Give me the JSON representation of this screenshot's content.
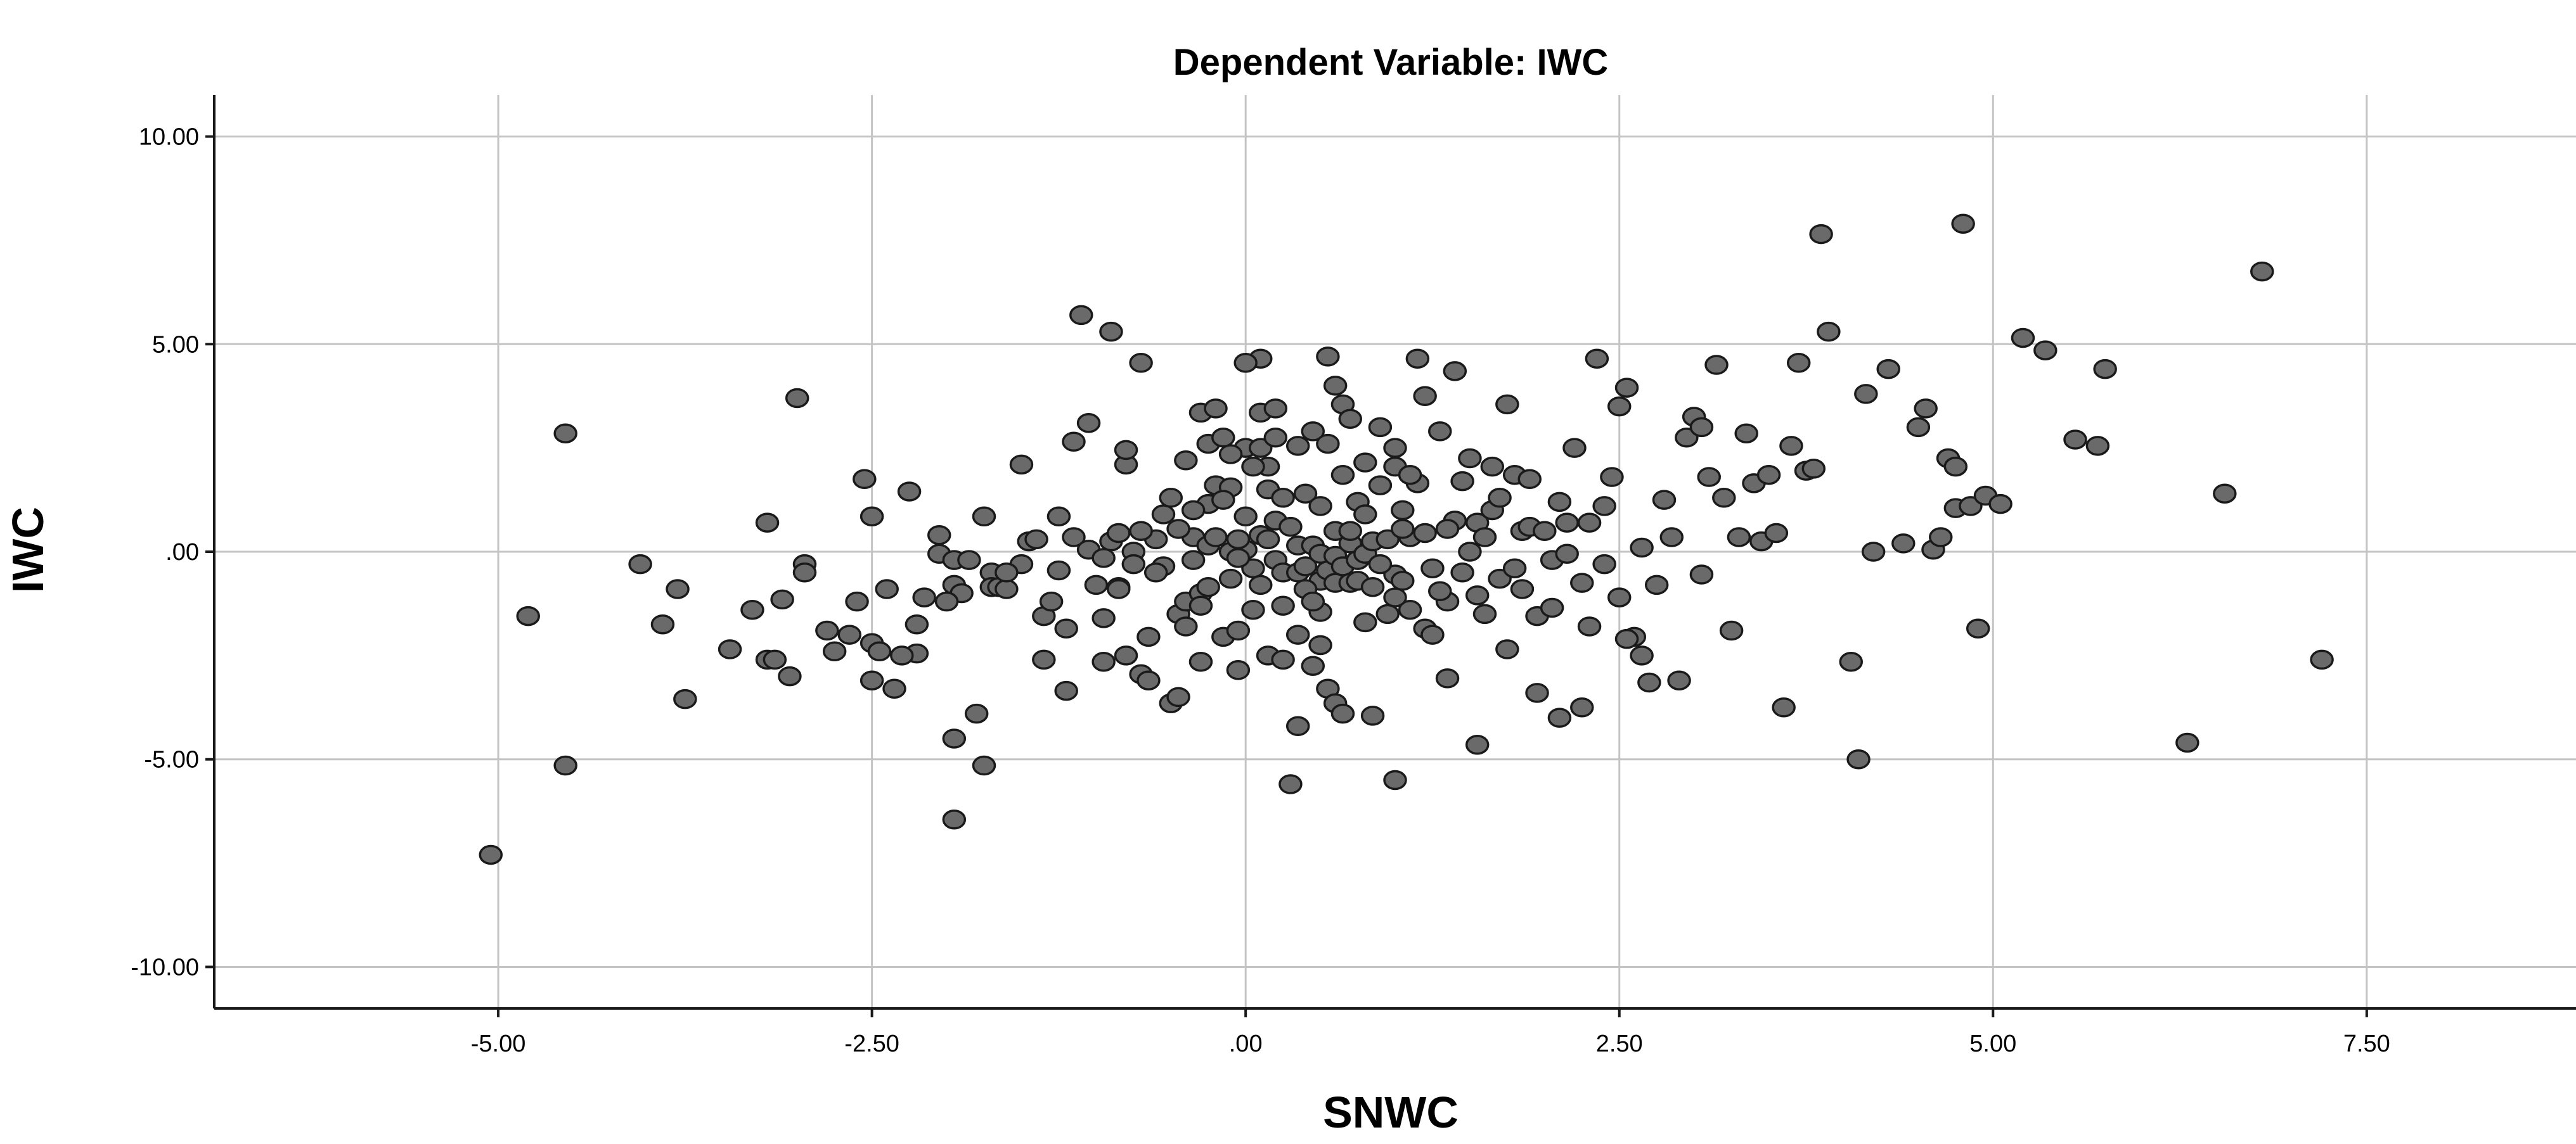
{
  "chart_data": {
    "type": "scatter",
    "title": "Dependent Variable: IWC",
    "xlabel": "SNWC",
    "ylabel": "IWC",
    "xlim": [
      -6.9,
      8.9
    ],
    "ylim": [
      -11.0,
      11.0
    ],
    "x_ticks": [
      -5,
      -2.5,
      0,
      2.5,
      5,
      7.5
    ],
    "x_tick_labels": [
      "-5.00",
      "-2.50",
      ".00",
      "2.50",
      "5.00",
      "7.50"
    ],
    "y_ticks": [
      10,
      5,
      0,
      -5,
      -10
    ],
    "y_tick_labels": [
      "10.00",
      "5.00",
      ".00",
      "-5.00",
      "-10.00"
    ],
    "grid": true,
    "legend": "none",
    "point_fill": "#6a6a6a",
    "point_stroke": "#1a1a1a",
    "points": [
      [
        -5.05,
        -7.3
      ],
      [
        -4.8,
        -1.55
      ],
      [
        -4.55,
        2.85
      ],
      [
        -4.55,
        -5.15
      ],
      [
        -4.05,
        -0.3
      ],
      [
        -3.9,
        -1.75
      ],
      [
        -3.8,
        -0.9
      ],
      [
        -3.75,
        -3.55
      ],
      [
        -3.45,
        -2.35
      ],
      [
        -3.3,
        -1.4
      ],
      [
        -3.2,
        0.7
      ],
      [
        -3.2,
        -2.6
      ],
      [
        -3.15,
        -2.6
      ],
      [
        -3.1,
        -1.15
      ],
      [
        -3.05,
        -3.0
      ],
      [
        -3.0,
        3.7
      ],
      [
        -2.95,
        -0.3
      ],
      [
        -2.95,
        -0.5
      ],
      [
        -2.75,
        -2.4
      ],
      [
        -2.65,
        -2.0
      ],
      [
        -2.6,
        -1.2
      ],
      [
        -2.55,
        1.75
      ],
      [
        -2.5,
        0.85
      ],
      [
        -2.5,
        -2.2
      ],
      [
        -2.5,
        -3.1
      ],
      [
        -2.45,
        -2.4
      ],
      [
        -2.35,
        -3.3
      ],
      [
        -2.25,
        1.45
      ],
      [
        -2.2,
        -1.75
      ],
      [
        -2.2,
        -2.45
      ],
      [
        -2.15,
        -1.1
      ],
      [
        -2.05,
        0.4
      ],
      [
        -2.05,
        -0.05
      ],
      [
        -1.95,
        -0.2
      ],
      [
        -1.95,
        -0.8
      ],
      [
        -1.95,
        -4.5
      ],
      [
        -1.95,
        -6.45
      ],
      [
        -1.9,
        -1.0
      ],
      [
        -1.8,
        -3.9
      ],
      [
        -1.75,
        0.85
      ],
      [
        -1.75,
        -5.15
      ],
      [
        -1.7,
        -0.5
      ],
      [
        -1.7,
        -0.85
      ],
      [
        -1.65,
        -0.85
      ],
      [
        -1.6,
        -0.9
      ],
      [
        -1.5,
        2.1
      ],
      [
        -1.45,
        0.25
      ],
      [
        -1.35,
        -1.55
      ],
      [
        -1.35,
        -2.6
      ],
      [
        -1.3,
        -1.2
      ],
      [
        -1.25,
        0.85
      ],
      [
        -1.2,
        -3.35
      ],
      [
        -1.15,
        2.65
      ],
      [
        -1.1,
        5.7
      ],
      [
        -1.05,
        3.1
      ],
      [
        -1.0,
        -0.8
      ],
      [
        -0.95,
        -2.65
      ],
      [
        -0.9,
        5.3
      ],
      [
        -0.9,
        0.25
      ],
      [
        -0.85,
        -0.85
      ],
      [
        -0.85,
        -0.9
      ],
      [
        -0.8,
        2.1
      ],
      [
        -0.8,
        2.45
      ],
      [
        -0.8,
        -2.5
      ],
      [
        -0.75,
        0.0
      ],
      [
        -0.75,
        -0.3
      ],
      [
        -0.7,
        4.55
      ],
      [
        -0.7,
        -2.95
      ],
      [
        -0.65,
        -2.05
      ],
      [
        -0.65,
        -3.1
      ],
      [
        -0.6,
        0.3
      ],
      [
        -0.55,
        -0.35
      ],
      [
        -0.5,
        -3.65
      ],
      [
        -0.45,
        -1.5
      ],
      [
        -0.45,
        -3.5
      ],
      [
        -0.4,
        -1.2
      ],
      [
        -0.4,
        -1.8
      ],
      [
        -0.35,
        0.35
      ],
      [
        -0.35,
        -0.2
      ],
      [
        -0.3,
        -1.0
      ],
      [
        -0.3,
        -1.3
      ],
      [
        -0.3,
        -2.65
      ],
      [
        -0.25,
        1.15
      ],
      [
        -0.25,
        0.15
      ],
      [
        -0.25,
        -0.85
      ],
      [
        -0.2,
        1.6
      ],
      [
        -0.2,
        0.35
      ],
      [
        -0.15,
        -2.05
      ],
      [
        -0.1,
        1.55
      ],
      [
        -0.1,
        0.0
      ],
      [
        -0.1,
        -0.65
      ],
      [
        -0.05,
        -1.9
      ],
      [
        -0.05,
        -2.85
      ],
      [
        0.0,
        2.5
      ],
      [
        0.0,
        0.85
      ],
      [
        0.0,
        0.05
      ],
      [
        0.05,
        -0.4
      ],
      [
        0.05,
        -1.4
      ],
      [
        0.1,
        4.65
      ],
      [
        0.1,
        3.35
      ],
      [
        0.1,
        2.5
      ],
      [
        0.1,
        0.4
      ],
      [
        0.1,
        -0.8
      ],
      [
        0.15,
        2.05
      ],
      [
        0.15,
        1.5
      ],
      [
        0.15,
        0.3
      ],
      [
        0.15,
        -2.5
      ],
      [
        0.2,
        3.45
      ],
      [
        0.2,
        2.75
      ],
      [
        0.2,
        0.75
      ],
      [
        0.2,
        -0.2
      ],
      [
        0.25,
        1.3
      ],
      [
        0.25,
        -0.5
      ],
      [
        0.25,
        -1.3
      ],
      [
        0.25,
        -2.6
      ],
      [
        0.3,
        -5.6
      ],
      [
        0.35,
        2.55
      ],
      [
        0.35,
        0.15
      ],
      [
        0.35,
        -0.5
      ],
      [
        0.35,
        -2.0
      ],
      [
        0.35,
        -4.2
      ],
      [
        0.4,
        1.4
      ],
      [
        0.4,
        -0.35
      ],
      [
        0.45,
        2.9
      ],
      [
        0.45,
        0.15
      ],
      [
        0.45,
        -2.75
      ],
      [
        0.5,
        1.1
      ],
      [
        0.5,
        -0.05
      ],
      [
        0.5,
        -0.7
      ],
      [
        0.5,
        -1.45
      ],
      [
        0.5,
        -2.25
      ],
      [
        0.55,
        4.7
      ],
      [
        0.55,
        2.6
      ],
      [
        0.55,
        -0.45
      ],
      [
        0.55,
        -3.3
      ],
      [
        0.6,
        4.0
      ],
      [
        0.6,
        -0.1
      ],
      [
        0.6,
        -0.75
      ],
      [
        0.6,
        -3.65
      ],
      [
        0.65,
        3.55
      ],
      [
        0.65,
        1.85
      ],
      [
        0.65,
        -0.35
      ],
      [
        0.65,
        -3.9
      ],
      [
        0.7,
        3.2
      ],
      [
        0.7,
        0.2
      ],
      [
        0.7,
        -0.75
      ],
      [
        0.75,
        -0.2
      ],
      [
        0.75,
        -0.7
      ],
      [
        0.8,
        2.15
      ],
      [
        0.8,
        -0.05
      ],
      [
        0.8,
        -1.7
      ],
      [
        0.85,
        0.25
      ],
      [
        0.85,
        -0.85
      ],
      [
        0.85,
        -3.95
      ],
      [
        0.9,
        3.0
      ],
      [
        0.9,
        1.6
      ],
      [
        0.95,
        0.3
      ],
      [
        0.95,
        -1.5
      ],
      [
        1.0,
        2.5
      ],
      [
        1.0,
        2.05
      ],
      [
        1.0,
        -0.55
      ],
      [
        1.0,
        -5.5
      ],
      [
        1.05,
        1.0
      ],
      [
        1.05,
        -0.7
      ],
      [
        1.1,
        -1.4
      ],
      [
        1.1,
        0.35
      ],
      [
        1.15,
        4.65
      ],
      [
        1.15,
        1.65
      ],
      [
        1.2,
        3.75
      ],
      [
        1.2,
        0.45
      ],
      [
        1.2,
        -1.85
      ],
      [
        1.25,
        -2.0
      ],
      [
        1.3,
        2.9
      ],
      [
        1.35,
        -1.2
      ],
      [
        1.35,
        -3.05
      ],
      [
        1.4,
        4.35
      ],
      [
        1.4,
        0.75
      ],
      [
        1.45,
        -0.5
      ],
      [
        1.5,
        2.25
      ],
      [
        1.55,
        0.7
      ],
      [
        1.55,
        -4.65
      ],
      [
        1.6,
        -1.5
      ],
      [
        1.65,
        2.05
      ],
      [
        1.65,
        1.0
      ],
      [
        1.7,
        -0.65
      ],
      [
        1.75,
        3.55
      ],
      [
        1.75,
        -2.35
      ],
      [
        1.8,
        1.85
      ],
      [
        1.85,
        0.5
      ],
      [
        1.9,
        0.6
      ],
      [
        1.95,
        -3.4
      ],
      [
        2.0,
        0.5
      ],
      [
        2.05,
        -0.2
      ],
      [
        2.1,
        -4.0
      ],
      [
        2.15,
        -0.05
      ],
      [
        2.2,
        2.5
      ],
      [
        2.25,
        -3.75
      ],
      [
        2.3,
        0.7
      ],
      [
        2.35,
        4.65
      ],
      [
        2.4,
        1.1
      ],
      [
        2.45,
        1.8
      ],
      [
        2.5,
        3.5
      ],
      [
        2.55,
        3.95
      ],
      [
        2.6,
        -2.05
      ],
      [
        2.65,
        -2.5
      ],
      [
        2.7,
        -3.15
      ],
      [
        2.75,
        -0.8
      ],
      [
        2.8,
        1.25
      ],
      [
        2.85,
        0.35
      ],
      [
        2.9,
        -3.1
      ],
      [
        2.95,
        2.75
      ],
      [
        3.0,
        3.25
      ],
      [
        3.05,
        3.0
      ],
      [
        3.05,
        -0.55
      ],
      [
        3.1,
        1.8
      ],
      [
        3.15,
        4.5
      ],
      [
        3.2,
        1.3
      ],
      [
        3.25,
        -1.9
      ],
      [
        3.3,
        0.35
      ],
      [
        3.35,
        2.85
      ],
      [
        3.4,
        1.65
      ],
      [
        3.45,
        0.25
      ],
      [
        3.5,
        1.85
      ],
      [
        3.55,
        0.45
      ],
      [
        3.6,
        -3.75
      ],
      [
        3.65,
        2.55
      ],
      [
        3.7,
        4.55
      ],
      [
        3.75,
        1.95
      ],
      [
        3.8,
        2.0
      ],
      [
        3.85,
        7.65
      ],
      [
        3.9,
        5.3
      ],
      [
        4.05,
        -2.65
      ],
      [
        4.1,
        -5.0
      ],
      [
        4.15,
        3.8
      ],
      [
        4.2,
        0.0
      ],
      [
        4.3,
        4.4
      ],
      [
        4.4,
        0.2
      ],
      [
        4.5,
        3.0
      ],
      [
        4.55,
        3.45
      ],
      [
        4.6,
        0.05
      ],
      [
        4.65,
        0.35
      ],
      [
        4.7,
        2.25
      ],
      [
        4.75,
        2.05
      ],
      [
        4.75,
        1.05
      ],
      [
        4.8,
        7.9
      ],
      [
        4.85,
        1.1
      ],
      [
        4.9,
        -1.85
      ],
      [
        4.95,
        1.35
      ],
      [
        5.05,
        1.15
      ],
      [
        5.2,
        5.15
      ],
      [
        5.35,
        4.85
      ],
      [
        5.55,
        2.7
      ],
      [
        5.7,
        2.55
      ],
      [
        5.75,
        4.4
      ],
      [
        6.3,
        -4.6
      ],
      [
        6.55,
        1.4
      ],
      [
        6.8,
        6.75
      ],
      [
        7.2,
        -2.6
      ],
      [
        -1.5,
        -0.3
      ],
      [
        -1.4,
        0.3
      ],
      [
        -1.25,
        -0.45
      ],
      [
        -1.15,
        0.35
      ],
      [
        -1.05,
        0.05
      ],
      [
        -0.95,
        -0.15
      ],
      [
        -0.85,
        0.45
      ],
      [
        -0.7,
        0.5
      ],
      [
        -0.6,
        -0.5
      ],
      [
        -0.55,
        0.9
      ],
      [
        -0.5,
        1.3
      ],
      [
        -0.45,
        0.55
      ],
      [
        -0.4,
        2.2
      ],
      [
        -0.35,
        1.0
      ],
      [
        -0.3,
        3.35
      ],
      [
        -0.25,
        2.6
      ],
      [
        -0.2,
        3.45
      ],
      [
        -0.15,
        2.75
      ],
      [
        -0.15,
        1.25
      ],
      [
        -0.1,
        2.35
      ],
      [
        -0.05,
        0.3
      ],
      [
        -0.05,
        -0.15
      ],
      [
        0.0,
        4.55
      ],
      [
        0.05,
        2.05
      ],
      [
        0.3,
        0.6
      ],
      [
        0.4,
        -0.9
      ],
      [
        0.45,
        -1.2
      ],
      [
        0.6,
        0.5
      ],
      [
        0.7,
        0.5
      ],
      [
        0.75,
        1.2
      ],
      [
        0.8,
        0.9
      ],
      [
        0.9,
        -0.3
      ],
      [
        1.0,
        -1.1
      ],
      [
        1.05,
        0.55
      ],
      [
        1.1,
        1.85
      ],
      [
        1.25,
        -0.4
      ],
      [
        1.3,
        -0.95
      ],
      [
        1.35,
        0.55
      ],
      [
        1.45,
        1.7
      ],
      [
        1.5,
        0.0
      ],
      [
        1.55,
        -1.05
      ],
      [
        1.6,
        0.35
      ],
      [
        1.7,
        1.3
      ],
      [
        1.8,
        -0.4
      ],
      [
        1.85,
        -0.9
      ],
      [
        1.9,
        1.75
      ],
      [
        1.95,
        -1.55
      ],
      [
        2.05,
        -1.35
      ],
      [
        2.1,
        1.2
      ],
      [
        2.15,
        0.7
      ],
      [
        2.25,
        -0.75
      ],
      [
        2.3,
        -1.8
      ],
      [
        2.4,
        -0.3
      ],
      [
        2.5,
        -1.1
      ],
      [
        2.55,
        -2.1
      ],
      [
        2.65,
        0.1
      ],
      [
        -2.3,
        -2.5
      ],
      [
        -2.8,
        -1.9
      ],
      [
        -2.4,
        -0.9
      ],
      [
        -2.0,
        -1.2
      ],
      [
        -1.6,
        -0.5
      ],
      [
        -1.85,
        -0.2
      ],
      [
        -1.2,
        -1.85
      ],
      [
        -0.95,
        -1.6
      ]
    ]
  }
}
